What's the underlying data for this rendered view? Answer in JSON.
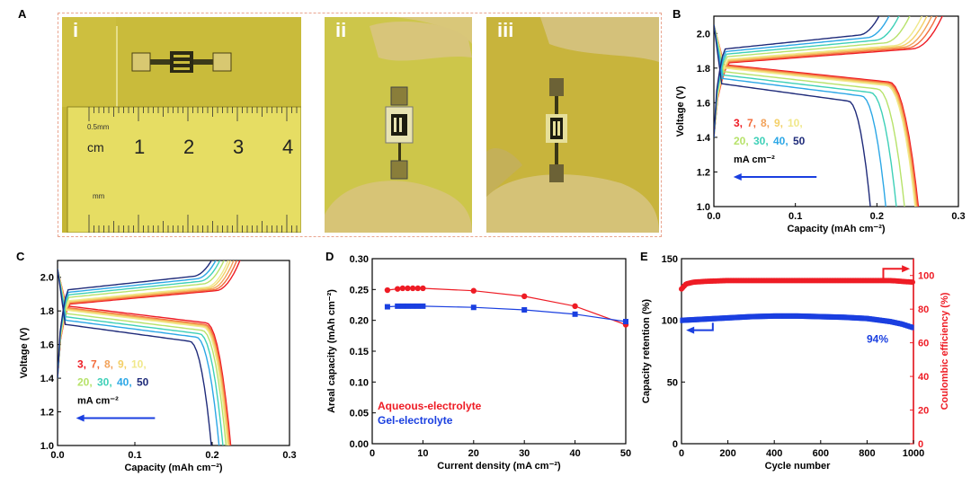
{
  "panels": {
    "a": {
      "letter": "A"
    },
    "b": {
      "letter": "B"
    },
    "c": {
      "letter": "C"
    },
    "d": {
      "letter": "D"
    },
    "e": {
      "letter": "E"
    }
  },
  "photos": {
    "i": {
      "label": "i",
      "ruler_unit": "cm",
      "ruler_mm_label": "mm",
      "ruler_half_label": "0.5mm",
      "ruler_numbers": [
        "1",
        "2",
        "3",
        "4"
      ]
    },
    "ii": {
      "label": "ii"
    },
    "iii": {
      "label": "iii"
    }
  },
  "colors": {
    "rate_palette": [
      "#ee1c25",
      "#f36b3b",
      "#f2a25a",
      "#f4d068",
      "#f0e88a",
      "#b7e26a",
      "#3ed0b8",
      "#2ca7e6",
      "#1f2b7a"
    ],
    "red": "#ee1c25",
    "blue": "#1a3fe0"
  },
  "chart_data": [
    {
      "id": "B",
      "type": "line",
      "xlabel": "Capacity (mAh cm⁻²)",
      "ylabel": "Voltage (V)",
      "xlim": [
        0,
        0.3
      ],
      "ylim": [
        1.0,
        2.1
      ],
      "xticks": [
        "0.0",
        "0.1",
        "0.2",
        "0.3"
      ],
      "yticks": [
        "1.0",
        "1.2",
        "1.4",
        "1.6",
        "1.8",
        "2.0"
      ],
      "legend": {
        "rates_line1": [
          "3",
          "7",
          "8",
          "9",
          "10"
        ],
        "rates_line2": [
          "20",
          "30",
          "40",
          "50"
        ],
        "unit": "mA cm⁻²"
      },
      "series": [
        {
          "rate": "3",
          "charge_end": 0.285,
          "discharge_end": 0.252,
          "plateau_charge": 1.87,
          "plateau_discharge": 1.82
        },
        {
          "rate": "7",
          "charge_end": 0.278,
          "discharge_end": 0.251,
          "plateau_charge": 1.875,
          "plateau_discharge": 1.815
        },
        {
          "rate": "8",
          "charge_end": 0.272,
          "discharge_end": 0.25,
          "plateau_charge": 1.88,
          "plateau_discharge": 1.81
        },
        {
          "rate": "9",
          "charge_end": 0.266,
          "discharge_end": 0.249,
          "plateau_charge": 1.885,
          "plateau_discharge": 1.805
        },
        {
          "rate": "10",
          "charge_end": 0.26,
          "discharge_end": 0.248,
          "plateau_charge": 1.89,
          "plateau_discharge": 1.8
        },
        {
          "rate": "20",
          "charge_end": 0.245,
          "discharge_end": 0.235,
          "plateau_charge": 1.905,
          "plateau_discharge": 1.78
        },
        {
          "rate": "30",
          "charge_end": 0.232,
          "discharge_end": 0.225,
          "plateau_charge": 1.92,
          "plateau_discharge": 1.76
        },
        {
          "rate": "40",
          "charge_end": 0.22,
          "discharge_end": 0.212,
          "plateau_charge": 1.935,
          "plateau_discharge": 1.74
        },
        {
          "rate": "50",
          "charge_end": 0.208,
          "discharge_end": 0.193,
          "plateau_charge": 1.95,
          "plateau_discharge": 1.71
        }
      ]
    },
    {
      "id": "C",
      "type": "line",
      "xlabel": "Capacity (mAh cm⁻²)",
      "ylabel": "Voltage (V)",
      "xlim": [
        0,
        0.3
      ],
      "ylim": [
        1.0,
        2.1
      ],
      "xticks": [
        "0.0",
        "0.1",
        "0.2",
        "0.3"
      ],
      "yticks": [
        "1.0",
        "1.2",
        "1.4",
        "1.6",
        "1.8",
        "2.0"
      ],
      "legend": {
        "rates_line1": [
          "3",
          "7",
          "8",
          "9",
          "10"
        ],
        "rates_line2": [
          "20",
          "30",
          "40",
          "50"
        ],
        "unit": "mA cm⁻²"
      },
      "series": [
        {
          "rate": "3",
          "charge_end": 0.24,
          "discharge_end": 0.225,
          "plateau_charge": 1.88,
          "plateau_discharge": 1.83
        },
        {
          "rate": "7",
          "charge_end": 0.236,
          "discharge_end": 0.224,
          "plateau_charge": 1.885,
          "plateau_discharge": 1.82
        },
        {
          "rate": "8",
          "charge_end": 0.232,
          "discharge_end": 0.223,
          "plateau_charge": 1.89,
          "plateau_discharge": 1.815
        },
        {
          "rate": "9",
          "charge_end": 0.228,
          "discharge_end": 0.222,
          "plateau_charge": 1.895,
          "plateau_discharge": 1.81
        },
        {
          "rate": "10",
          "charge_end": 0.225,
          "discharge_end": 0.221,
          "plateau_charge": 1.9,
          "plateau_discharge": 1.805
        },
        {
          "rate": "20",
          "charge_end": 0.22,
          "discharge_end": 0.219,
          "plateau_charge": 1.92,
          "plateau_discharge": 1.785
        },
        {
          "rate": "30",
          "charge_end": 0.215,
          "discharge_end": 0.215,
          "plateau_charge": 1.935,
          "plateau_discharge": 1.765
        },
        {
          "rate": "40",
          "charge_end": 0.21,
          "discharge_end": 0.21,
          "plateau_charge": 1.95,
          "plateau_discharge": 1.745
        },
        {
          "rate": "50",
          "charge_end": 0.205,
          "discharge_end": 0.2,
          "plateau_charge": 1.965,
          "plateau_discharge": 1.72
        }
      ]
    },
    {
      "id": "D",
      "type": "line",
      "xlabel": "Current density (mA cm⁻²)",
      "ylabel": "Areal capacity (mAh cm⁻²)",
      "xlim": [
        0,
        50
      ],
      "ylim": [
        0,
        0.3
      ],
      "xticks": [
        "0",
        "10",
        "20",
        "30",
        "40",
        "50"
      ],
      "yticks": [
        "0.00",
        "0.05",
        "0.10",
        "0.15",
        "0.20",
        "0.25",
        "0.30"
      ],
      "series": [
        {
          "name": "Aqueous-electrolyte",
          "x": [
            3,
            5,
            6,
            7,
            8,
            9,
            10,
            20,
            30,
            40,
            50
          ],
          "y": [
            0.249,
            0.251,
            0.252,
            0.252,
            0.252,
            0.252,
            0.252,
            0.248,
            0.239,
            0.223,
            0.193
          ]
        },
        {
          "name": "Gel-electrolyte",
          "x": [
            3,
            5,
            6,
            7,
            8,
            9,
            10,
            20,
            30,
            40,
            50
          ],
          "y": [
            0.222,
            0.223,
            0.223,
            0.223,
            0.223,
            0.223,
            0.223,
            0.221,
            0.217,
            0.21,
            0.198
          ]
        }
      ]
    },
    {
      "id": "E",
      "type": "scatter",
      "xlabel": "Cycle number",
      "ylabel": "Capacity retention (%)",
      "y2label": "Coulombic efficiency (%)",
      "xlim": [
        0,
        1000
      ],
      "ylim": [
        0,
        150
      ],
      "y2lim": [
        0,
        110
      ],
      "xticks": [
        "0",
        "200",
        "400",
        "600",
        "800",
        "1000"
      ],
      "yticks": [
        "0",
        "50",
        "100",
        "150"
      ],
      "y2ticks": [
        "0",
        "20",
        "40",
        "60",
        "80",
        "100"
      ],
      "annotation": "94%",
      "series": [
        {
          "axis": "left",
          "x": [
            0,
            100,
            200,
            300,
            400,
            500,
            600,
            700,
            800,
            900,
            950,
            1000
          ],
          "y": [
            100,
            101,
            102,
            103,
            103.5,
            103.5,
            103,
            102.5,
            101.5,
            99,
            97,
            94
          ]
        },
        {
          "axis": "right",
          "x": [
            0,
            20,
            50,
            100,
            200,
            300,
            400,
            500,
            600,
            700,
            800,
            900,
            1000
          ],
          "y": [
            92,
            95,
            96,
            96.5,
            97,
            97,
            97,
            97,
            97,
            97,
            97,
            97,
            96
          ]
        }
      ]
    }
  ]
}
